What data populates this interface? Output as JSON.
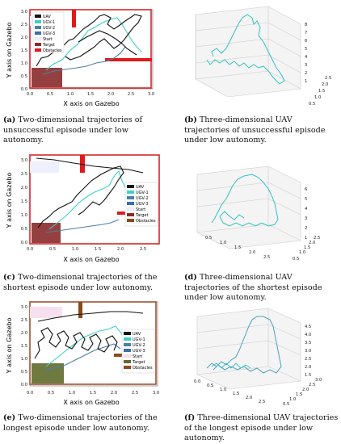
{
  "legend_labels": [
    "UAV",
    "UGV-1",
    "UGV-2",
    "UGV-3",
    "Start",
    "Target",
    "Obstacles"
  ],
  "colors": {
    "uav": "#111111",
    "ugv1": "#3ecfc6",
    "ugv2": "#4b7fa6",
    "ugv3": "#3a6fa8",
    "start": "#eef0fb",
    "target": "#8a2b2b",
    "obstacle": "#e0191d",
    "frame": "#d62828",
    "uav3d": "#35c1c1"
  },
  "panel_a": {
    "xlabel": "X axis on Gazebo",
    "ylabel": "Y axis on Gazebo",
    "xticks": [
      "0.0",
      "0.5",
      "1.0",
      "1.5",
      "2.0",
      "2.5",
      "3.0"
    ],
    "yticks": [
      "0.0",
      "0.5",
      "1.0",
      "1.5",
      "2.0",
      "2.5",
      "3.0"
    ]
  },
  "panel_c": {
    "xlabel": "X axis on Gazebo",
    "ylabel": "Y axis on Gazebo",
    "xticks": [
      "0.0",
      "0.5",
      "1.0",
      "1.5",
      "2.0",
      "2.5"
    ],
    "yticks": [
      "0.0",
      "0.5",
      "1.0",
      "1.5",
      "2.0",
      "2.5",
      "3.0"
    ]
  },
  "panel_e": {
    "xlabel": "X axis on Gazebo",
    "ylabel": "Y axis on Gazebo",
    "xticks": [
      "0.0",
      "0.5",
      "1.0",
      "1.5",
      "2.0",
      "2.5",
      "3.0"
    ],
    "yticks": [
      "0.0",
      "0.5",
      "1.0",
      "1.5",
      "2.0",
      "2.5",
      "3.0"
    ]
  },
  "panel_b": {
    "zticks": [
      "1",
      "2",
      "3",
      "4",
      "5",
      "6",
      "7",
      "8"
    ],
    "yticks": [
      "0.5",
      "1.0",
      "1.5",
      "2.0",
      "2.5"
    ],
    "xticks": []
  },
  "panel_d": {
    "zticks": [
      "1",
      "2",
      "3",
      "4",
      "5",
      "6"
    ],
    "xticks": [
      "0.5",
      "1.0",
      "1.5",
      "2.0",
      "2.5"
    ],
    "yticks": [
      "0.5",
      "1.0",
      "1.5",
      "2.0",
      "2.5"
    ]
  },
  "panel_f": {
    "zticks": [
      "1.5",
      "2.0",
      "2.5",
      "3.0",
      "3.5",
      "4.0",
      "4.5"
    ],
    "xticks": [
      "0.0",
      "0.5",
      "1.0",
      "1.5",
      "2.0",
      "2.5"
    ],
    "yticks": [
      "0.5",
      "1.0",
      "1.5",
      "2.0",
      "2.5",
      "3.0"
    ]
  },
  "captions": {
    "a_label": "(a)",
    "a_text": "Two-dimensional trajectories of unsuccessful episode under low autonomy.",
    "b_label": "(b)",
    "b_text": "Three-dimensional UAV trajectories of unsuccessful episode under low autonomy.",
    "c_label": "(c)",
    "c_text": "Two-dimensional trajectories of the shortest episode under low autonomy.",
    "d_label": "(d)",
    "d_text": "Three-dimensional UAV trajectories of the shortest episode under low autonomy.",
    "e_label": "(e)",
    "e_text": "Two-dimensional trajectories of the longest episode under low autonomy.",
    "f_label": "(f)",
    "f_text": "Three-dimensional UAV trajectories of the longest episode under low autonomy."
  }
}
